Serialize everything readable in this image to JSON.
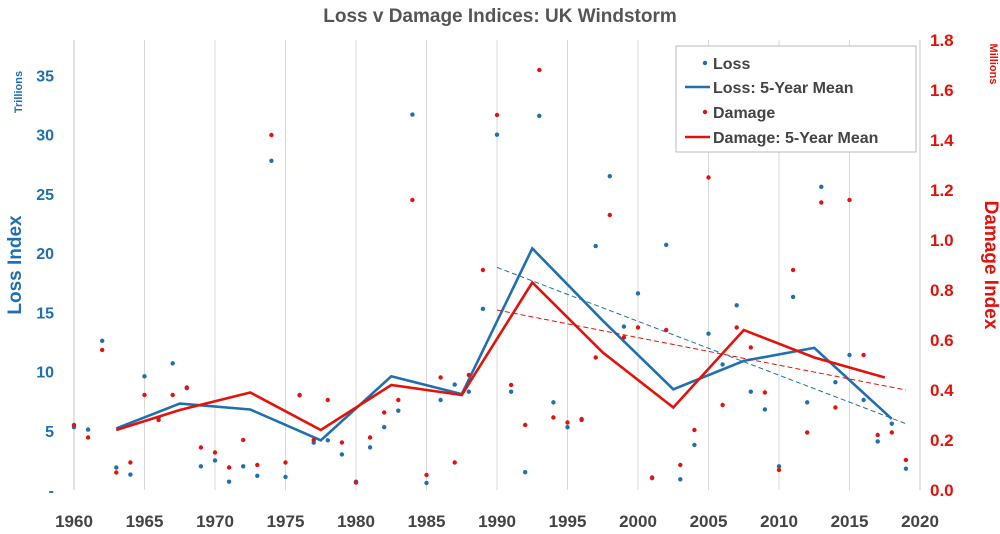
{
  "chart_data": {
    "type": "scatter",
    "title": "Loss v Damage Indices: UK Windstorm",
    "x_ticks": [
      "1960",
      "1965",
      "1970",
      "1975",
      "1980",
      "1985",
      "1990",
      "1995",
      "2000",
      "2005",
      "2010",
      "2015",
      "2020"
    ],
    "xlim": [
      1960,
      2020
    ],
    "y_left": {
      "label": "Loss Index",
      "unit": "Trillions",
      "ticks": [
        "-",
        "5",
        "10",
        "15",
        "20",
        "25",
        "30",
        "35"
      ],
      "ylim": [
        0,
        38
      ]
    },
    "y_right": {
      "label": "Damage Index",
      "unit": "Millions",
      "ticks": [
        "0.0",
        "0.2",
        "0.4",
        "0.6",
        "0.8",
        "1.0",
        "1.2",
        "1.4",
        "1.6",
        "1.8"
      ],
      "ylim": [
        0,
        1.8
      ]
    },
    "grid": "vertical",
    "legend_position": "top-right",
    "series": [
      {
        "name": "Loss",
        "kind": "points",
        "axis": "left",
        "color": "#1f6fb2",
        "points": [
          [
            1960,
            5.3
          ],
          [
            1961,
            5.1
          ],
          [
            1962,
            12.6
          ],
          [
            1963,
            1.9
          ],
          [
            1964,
            1.3
          ],
          [
            1965,
            9.6
          ],
          [
            1966,
            6.1
          ],
          [
            1967,
            10.7
          ],
          [
            1968,
            8.6
          ],
          [
            1969,
            2.0
          ],
          [
            1970,
            2.5
          ],
          [
            1971,
            0.7
          ],
          [
            1972,
            2.0
          ],
          [
            1973,
            1.2
          ],
          [
            1974,
            27.8
          ],
          [
            1975,
            1.1
          ],
          [
            1976,
            8.0
          ],
          [
            1977,
            4.0
          ],
          [
            1978,
            4.2
          ],
          [
            1979,
            3.0
          ],
          [
            1980,
            0.7
          ],
          [
            1981,
            3.6
          ],
          [
            1982,
            5.3
          ],
          [
            1983,
            6.7
          ],
          [
            1984,
            31.7
          ],
          [
            1985,
            0.6
          ],
          [
            1986,
            7.6
          ],
          [
            1987,
            8.9
          ],
          [
            1988,
            8.3
          ],
          [
            1989,
            15.3
          ],
          [
            1990,
            30.0
          ],
          [
            1991,
            8.3
          ],
          [
            1992,
            1.5
          ],
          [
            1993,
            31.6
          ],
          [
            1994,
            7.4
          ],
          [
            1995,
            5.3
          ],
          [
            1996,
            6.0
          ],
          [
            1997,
            20.6
          ],
          [
            1998,
            26.5
          ],
          [
            1999,
            13.8
          ],
          [
            2000,
            16.6
          ],
          [
            2001,
            1.0
          ],
          [
            2002,
            20.7
          ],
          [
            2003,
            0.9
          ],
          [
            2004,
            3.8
          ],
          [
            2005,
            13.2
          ],
          [
            2006,
            10.6
          ],
          [
            2007,
            15.6
          ],
          [
            2008,
            8.3
          ],
          [
            2009,
            6.8
          ],
          [
            2010,
            2.0
          ],
          [
            2011,
            16.3
          ],
          [
            2012,
            7.4
          ],
          [
            2013,
            25.6
          ],
          [
            2014,
            9.1
          ],
          [
            2015,
            11.4
          ],
          [
            2016,
            7.6
          ],
          [
            2017,
            4.1
          ],
          [
            2018,
            5.6
          ],
          [
            2019,
            1.8
          ]
        ]
      },
      {
        "name": "Loss: 5-Year Mean",
        "kind": "line",
        "axis": "left",
        "color": "#1f6fb2",
        "points": [
          [
            1963,
            5.2
          ],
          [
            1967.5,
            7.3
          ],
          [
            1972.5,
            6.8
          ],
          [
            1977.5,
            4.2
          ],
          [
            1982.5,
            9.6
          ],
          [
            1987.5,
            8.1
          ],
          [
            1992.5,
            20.4
          ],
          [
            1997.5,
            14.3
          ],
          [
            2002.5,
            8.5
          ],
          [
            2007.5,
            10.9
          ],
          [
            2012.5,
            12.0
          ],
          [
            2018,
            6.0
          ]
        ]
      },
      {
        "name": "Damage",
        "kind": "points",
        "axis": "right",
        "color": "#e3120b",
        "points": [
          [
            1960,
            0.26
          ],
          [
            1961,
            0.21
          ],
          [
            1962,
            0.56
          ],
          [
            1963,
            0.07
          ],
          [
            1964,
            0.11
          ],
          [
            1965,
            0.38
          ],
          [
            1966,
            0.28
          ],
          [
            1967,
            0.38
          ],
          [
            1968,
            0.41
          ],
          [
            1969,
            0.17
          ],
          [
            1970,
            0.15
          ],
          [
            1971,
            0.09
          ],
          [
            1972,
            0.2
          ],
          [
            1973,
            0.1
          ],
          [
            1974,
            1.42
          ],
          [
            1975,
            0.11
          ],
          [
            1976,
            0.38
          ],
          [
            1977,
            0.2
          ],
          [
            1978,
            0.36
          ],
          [
            1979,
            0.19
          ],
          [
            1980,
            0.03
          ],
          [
            1981,
            0.21
          ],
          [
            1982,
            0.31
          ],
          [
            1983,
            0.36
          ],
          [
            1984,
            1.16
          ],
          [
            1985,
            0.06
          ],
          [
            1986,
            0.45
          ],
          [
            1987,
            0.11
          ],
          [
            1988,
            0.46
          ],
          [
            1989,
            0.88
          ],
          [
            1990,
            1.5
          ],
          [
            1991,
            0.42
          ],
          [
            1992,
            0.26
          ],
          [
            1993,
            1.68
          ],
          [
            1994,
            0.29
          ],
          [
            1995,
            0.27
          ],
          [
            1996,
            0.28
          ],
          [
            1997,
            0.53
          ],
          [
            1998,
            1.1
          ],
          [
            1999,
            0.61
          ],
          [
            2000,
            0.65
          ],
          [
            2001,
            0.05
          ],
          [
            2002,
            0.64
          ],
          [
            2003,
            0.1
          ],
          [
            2004,
            0.24
          ],
          [
            2005,
            1.25
          ],
          [
            2006,
            0.34
          ],
          [
            2007,
            0.65
          ],
          [
            2008,
            0.57
          ],
          [
            2009,
            0.39
          ],
          [
            2010,
            0.08
          ],
          [
            2011,
            0.88
          ],
          [
            2012,
            0.23
          ],
          [
            2013,
            1.15
          ],
          [
            2014,
            0.33
          ],
          [
            2015,
            1.16
          ],
          [
            2016,
            0.54
          ],
          [
            2017,
            0.22
          ],
          [
            2018,
            0.23
          ],
          [
            2019,
            0.12
          ]
        ]
      },
      {
        "name": "Damage: 5-Year Mean",
        "kind": "line",
        "axis": "right",
        "color": "#e3120b",
        "points": [
          [
            1963,
            0.24
          ],
          [
            1967.5,
            0.32
          ],
          [
            1972.5,
            0.39
          ],
          [
            1977.5,
            0.24
          ],
          [
            1982.5,
            0.42
          ],
          [
            1987.5,
            0.38
          ],
          [
            1992.5,
            0.83
          ],
          [
            1997.5,
            0.55
          ],
          [
            2002.5,
            0.33
          ],
          [
            2007.5,
            0.64
          ],
          [
            2012.5,
            0.53
          ],
          [
            2017.5,
            0.45
          ]
        ]
      },
      {
        "name": "",
        "kind": "trend",
        "axis": "left",
        "color": "#1f6fb2",
        "points": [
          [
            1990,
            18.8
          ],
          [
            2019,
            5.6
          ]
        ]
      },
      {
        "name": "",
        "kind": "trend",
        "axis": "right",
        "color": "#e3120b",
        "points": [
          [
            1990,
            0.72
          ],
          [
            2019,
            0.4
          ]
        ]
      }
    ]
  }
}
